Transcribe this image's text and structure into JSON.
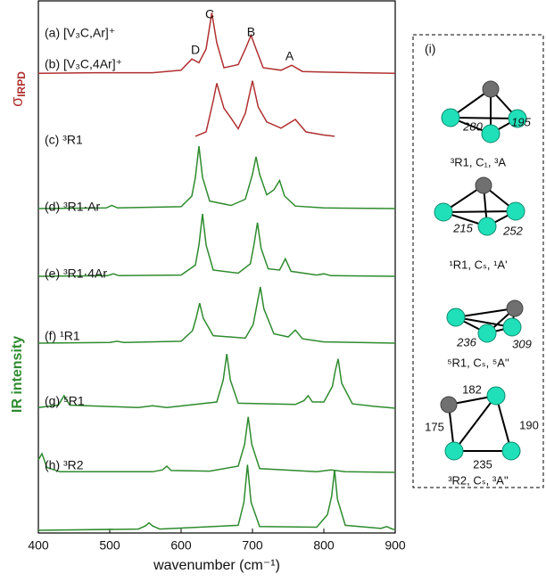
{
  "chart_data": {
    "type": "line",
    "x_label": "wavenumber (cm⁻¹)",
    "y_label_top": {
      "symbol": "σ",
      "subscript": "IRPD"
    },
    "y_label": "IR intensity",
    "xlim": [
      400,
      900
    ],
    "xticks": [
      400,
      500,
      600,
      700,
      800,
      900
    ],
    "ylim": [
      0,
      1
    ],
    "annotations": [
      {
        "text": "D",
        "x": 620
      },
      {
        "text": "C",
        "x": 640
      },
      {
        "text": "B",
        "x": 698
      },
      {
        "text": "A",
        "x": 752
      }
    ],
    "series": [
      {
        "name": "(a) [V₃C,Ar]⁺",
        "color": "#b03030",
        "x": [
          400,
          480,
          560,
          600,
          615,
          625,
          635,
          643,
          650,
          660,
          680,
          690,
          698,
          705,
          715,
          740,
          755,
          770,
          800,
          850,
          900
        ],
        "values": [
          0.01,
          0.02,
          0.02,
          0.06,
          0.24,
          0.18,
          0.4,
          0.98,
          0.5,
          0.1,
          0.15,
          0.4,
          0.62,
          0.4,
          0.1,
          0.06,
          0.14,
          0.04,
          0.03,
          0.02,
          0.01
        ]
      },
      {
        "name": "(b) [V₃C,4Ar]⁺",
        "color": "#b03030",
        "x": [
          620,
          635,
          645,
          650,
          660,
          670,
          680,
          690,
          700,
          708,
          720,
          740,
          760,
          775,
          800,
          815
        ],
        "values": [
          0.03,
          0.1,
          0.6,
          0.88,
          0.48,
          0.32,
          0.15,
          0.4,
          0.92,
          0.5,
          0.26,
          0.16,
          0.3,
          0.1,
          0.05,
          0.03
        ]
      },
      {
        "name": "(c) ³R1",
        "color": "#2e8b2e",
        "x": [
          400,
          495,
          503,
          511,
          600,
          615,
          620,
          625,
          630,
          640,
          670,
          690,
          700,
          705,
          710,
          720,
          730,
          738,
          745,
          760,
          800,
          900
        ],
        "values": [
          0,
          0.01,
          0.05,
          0.01,
          0.03,
          0.2,
          0.5,
          1.0,
          0.5,
          0.12,
          0.05,
          0.15,
          0.55,
          0.83,
          0.55,
          0.22,
          0.3,
          0.45,
          0.2,
          0.04,
          0.01,
          0
        ]
      },
      {
        "name": "(d) ³R1·Ar",
        "color": "#2e8b2e",
        "x": [
          400,
          497,
          505,
          513,
          600,
          620,
          625,
          630,
          635,
          645,
          680,
          697,
          702,
          707,
          712,
          722,
          738,
          746,
          754,
          790,
          800,
          810,
          900
        ],
        "values": [
          0,
          0.01,
          0.04,
          0.01,
          0.02,
          0.18,
          0.5,
          1.0,
          0.5,
          0.1,
          0.05,
          0.2,
          0.5,
          0.86,
          0.45,
          0.12,
          0.1,
          0.28,
          0.08,
          0.02,
          0.04,
          0.01,
          0
        ]
      },
      {
        "name": "(e) ³R1·4Ar",
        "color": "#2e8b2e",
        "x": [
          400,
          500,
          510,
          520,
          600,
          616,
          621,
          626,
          631,
          645,
          690,
          701,
          706,
          711,
          716,
          730,
          750,
          760,
          770,
          800,
          900
        ],
        "values": [
          0,
          0.01,
          0.03,
          0.01,
          0.03,
          0.2,
          0.4,
          0.64,
          0.4,
          0.12,
          0.08,
          0.3,
          0.6,
          0.9,
          0.55,
          0.15,
          0.1,
          0.21,
          0.07,
          0.02,
          0
        ]
      },
      {
        "name": "(f) ¹R1",
        "color": "#2e8b2e",
        "x": [
          400,
          428,
          436,
          444,
          540,
          560,
          580,
          650,
          659,
          664,
          669,
          680,
          760,
          772,
          778,
          784,
          800,
          812,
          816,
          820,
          825,
          840,
          870,
          900
        ],
        "values": [
          0.01,
          0.05,
          0.2,
          0.05,
          0.01,
          0.04,
          0.01,
          0.1,
          0.45,
          0.87,
          0.45,
          0.08,
          0.06,
          0.12,
          0.2,
          0.1,
          0.1,
          0.35,
          0.6,
          0.79,
          0.4,
          0.07,
          0.03,
          0
        ]
      },
      {
        "name": "(g) ⁵R1",
        "color": "#2e8b2e",
        "x": [
          400,
          405,
          412,
          430,
          560,
          574,
          580,
          586,
          640,
          680,
          689,
          694,
          699,
          710,
          790,
          810,
          830,
          900
        ],
        "values": [
          0.2,
          0.3,
          0.08,
          0.01,
          0.01,
          0.04,
          0.1,
          0.03,
          0.02,
          0.1,
          0.45,
          0.89,
          0.45,
          0.06,
          0.01,
          0.04,
          0.01,
          0
        ]
      },
      {
        "name": "(h) ³R2",
        "color": "#2e8b2e",
        "x": [
          400,
          540,
          550,
          555,
          560,
          570,
          680,
          688,
          693,
          698,
          710,
          790,
          805,
          811,
          815,
          819,
          830,
          880,
          888,
          896,
          900
        ],
        "values": [
          0,
          0.02,
          0.07,
          0.12,
          0.07,
          0.02,
          0.08,
          0.45,
          1.05,
          0.45,
          0.06,
          0.05,
          0.25,
          0.55,
          0.97,
          0.5,
          0.08,
          0.03,
          0.06,
          0.02,
          0.01
        ]
      }
    ],
    "panel": {
      "label": "(i)",
      "structures": [
        {
          "caption": "³R1, C₁, ³A",
          "distances": [
            "280",
            "195"
          ]
        },
        {
          "caption": "¹R1, Cₛ, ¹A'",
          "distances": [
            "215",
            "252"
          ]
        },
        {
          "caption": "⁵R1, Cₛ, ⁵A''",
          "distances": [
            "236",
            "309"
          ]
        },
        {
          "caption": "³R2, Cₛ, ³A''",
          "distances": [
            "182",
            "175",
            "190",
            "235"
          ]
        }
      ]
    }
  }
}
